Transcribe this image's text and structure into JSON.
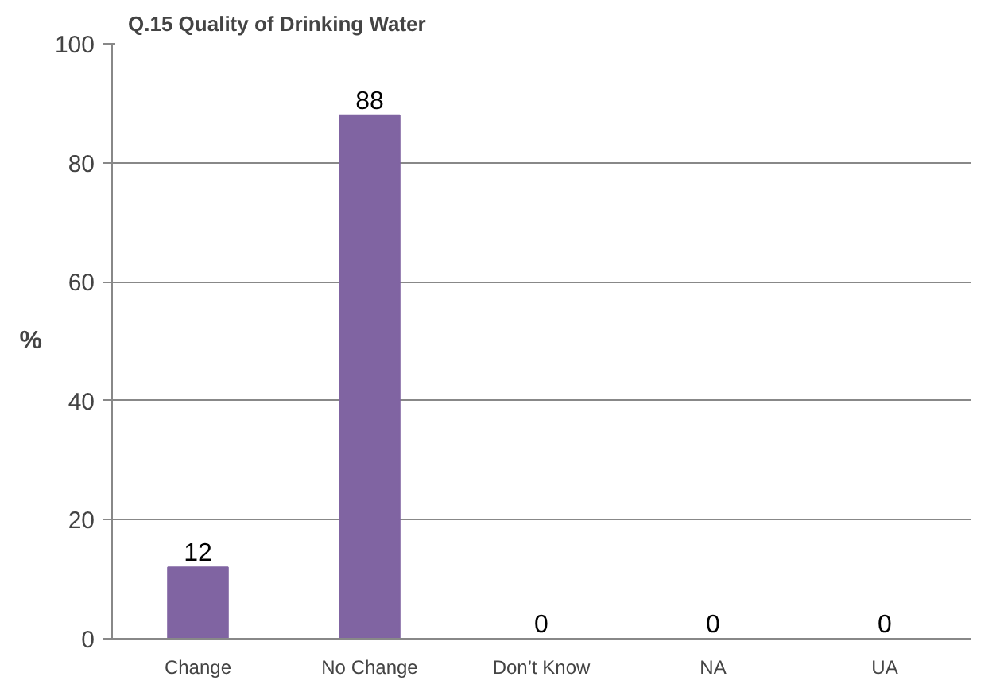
{
  "chart_data": {
    "type": "bar",
    "title": "Q.15 Quality of Drinking Water",
    "ylabel": "%",
    "categories": [
      "Change",
      "No Change",
      "Don’t Know",
      "NA",
      "UA"
    ],
    "values": [
      12,
      88,
      0,
      0,
      0
    ],
    "color": "#8064a2",
    "ylim": [
      0,
      100
    ],
    "yticks": [
      0,
      20,
      40,
      60,
      80,
      100
    ],
    "grid": "y",
    "data_labels": true
  }
}
